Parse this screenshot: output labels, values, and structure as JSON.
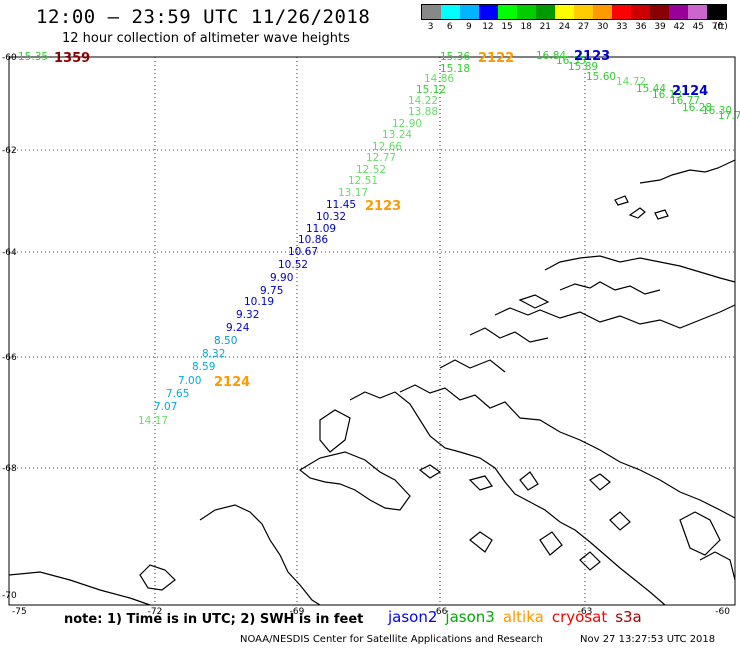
{
  "header": {
    "title": "12:00 – 23:59 UTC 11/26/2018",
    "subtitle": "12 hour collection of altimeter wave heights"
  },
  "legend": {
    "unit": "(ft)",
    "bins": [
      {
        "label": "3",
        "color": "#888888"
      },
      {
        "label": "6",
        "color": "#00ffff"
      },
      {
        "label": "9",
        "color": "#00b4ff"
      },
      {
        "label": "12",
        "color": "#0000ff"
      },
      {
        "label": "15",
        "color": "#00ff00"
      },
      {
        "label": "18",
        "color": "#00cc00"
      },
      {
        "label": "21",
        "color": "#009900"
      },
      {
        "label": "24",
        "color": "#ffff00"
      },
      {
        "label": "27",
        "color": "#ffcc00"
      },
      {
        "label": "30",
        "color": "#ff9900"
      },
      {
        "label": "33",
        "color": "#ff0000"
      },
      {
        "label": "36",
        "color": "#cc0000"
      },
      {
        "label": "39",
        "color": "#880000"
      },
      {
        "label": "42",
        "color": "#990099"
      },
      {
        "label": "45",
        "color": "#cc66cc"
      },
      {
        "label": "70",
        "color": "#000000"
      }
    ]
  },
  "axes": {
    "lon_labels": [
      "-75",
      "-72",
      "-69",
      "-66",
      "-63",
      "-60"
    ],
    "lat_labels": [
      "-60",
      "-62",
      "-64",
      "-66",
      "-68",
      "-70"
    ]
  },
  "observations": [
    {
      "value": "15.35",
      "color": "#33cc33"
    },
    {
      "value": "15.36",
      "color": "#33cc33"
    },
    {
      "value": "15.18",
      "color": "#33cc33"
    },
    {
      "value": "14.86",
      "color": "#66dd66"
    },
    {
      "value": "15.12",
      "color": "#33cc33"
    },
    {
      "value": "14.22",
      "color": "#66dd66"
    },
    {
      "value": "13.88",
      "color": "#66dd66"
    },
    {
      "value": "12.90",
      "color": "#66dd66"
    },
    {
      "value": "13.24",
      "color": "#66dd66"
    },
    {
      "value": "12.66",
      "color": "#66dd66"
    },
    {
      "value": "12.77",
      "color": "#66dd66"
    },
    {
      "value": "12.52",
      "color": "#66dd66"
    },
    {
      "value": "12.51",
      "color": "#66dd66"
    },
    {
      "value": "13.17",
      "color": "#66dd66"
    },
    {
      "value": "11.45",
      "color": "#0000cc"
    },
    {
      "value": "10.32",
      "color": "#0000cc"
    },
    {
      "value": "11.09",
      "color": "#0000cc"
    },
    {
      "value": "10.86",
      "color": "#0000cc"
    },
    {
      "value": "10.67",
      "color": "#0000cc"
    },
    {
      "value": "10.52",
      "color": "#0000cc"
    },
    {
      "value": "9.90",
      "color": "#0000cc"
    },
    {
      "value": "9.75",
      "color": "#0000cc"
    },
    {
      "value": "10.19",
      "color": "#0000cc"
    },
    {
      "value": "9.32",
      "color": "#0000cc"
    },
    {
      "value": "9.24",
      "color": "#0000cc"
    },
    {
      "value": "8.50",
      "color": "#0099dd"
    },
    {
      "value": "8.32",
      "color": "#00aadd"
    },
    {
      "value": "8.59",
      "color": "#00aadd"
    },
    {
      "value": "7.00",
      "color": "#00aadd"
    },
    {
      "value": "7.65",
      "color": "#00aadd"
    },
    {
      "value": "7.07",
      "color": "#00aadd"
    },
    {
      "value": "14.17",
      "color": "#66dd66"
    },
    {
      "value": "16.84",
      "color": "#33cc33"
    },
    {
      "value": "16.35",
      "color": "#33cc33"
    },
    {
      "value": "15.89",
      "color": "#33cc33"
    },
    {
      "value": "15.60",
      "color": "#33cc33"
    },
    {
      "value": "14.72",
      "color": "#66dd66"
    },
    {
      "value": "15.44",
      "color": "#33cc33"
    },
    {
      "value": "16.13",
      "color": "#33cc33"
    },
    {
      "value": "16.77",
      "color": "#33cc33"
    },
    {
      "value": "16.28",
      "color": "#33cc33"
    },
    {
      "value": "16.30",
      "color": "#33cc33"
    },
    {
      "value": "17.7",
      "color": "#33cc33"
    }
  ],
  "passes": [
    {
      "label": "1359",
      "color": "#880000"
    },
    {
      "label": "2122",
      "color": "#ff9900"
    },
    {
      "label": "2123",
      "color": "#0000cc"
    },
    {
      "label": "2124",
      "color": "#0000cc"
    },
    {
      "label": "2123",
      "color": "#ff9900"
    },
    {
      "label": "2124",
      "color": "#ff9900"
    }
  ],
  "footer": {
    "note": "note: 1) Time is in UTC; 2) SWH is in feet",
    "missions": [
      {
        "name": "jason2",
        "color": "#0000ff"
      },
      {
        "name": "jason3",
        "color": "#00aa00"
      },
      {
        "name": "altika",
        "color": "#ff9900"
      },
      {
        "name": "cryosat",
        "color": "#ff0000"
      },
      {
        "name": "s3a",
        "color": "#aa0000"
      }
    ],
    "credit": "NOAA/NESDIS Center for Satellite Applications and Research",
    "timestamp": "Nov 27 13:27:53 UTC 2018"
  }
}
